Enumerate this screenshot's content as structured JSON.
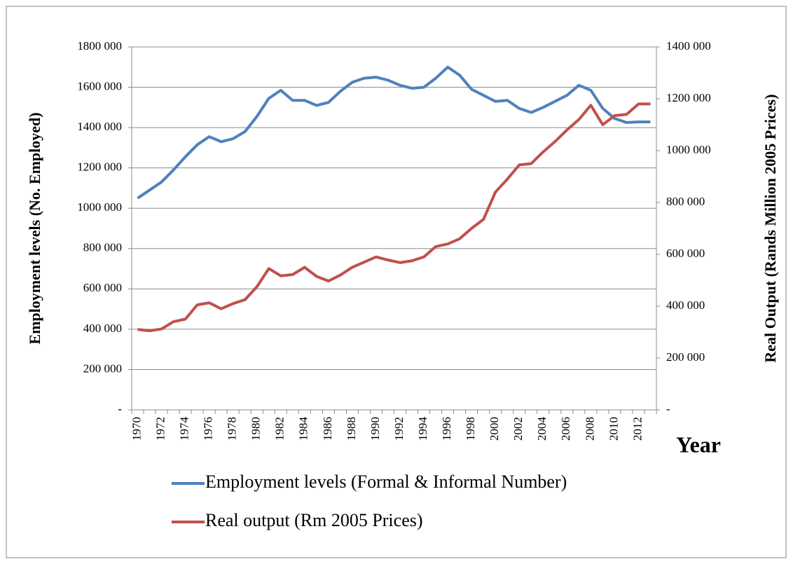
{
  "chart_data": {
    "type": "line",
    "y_label": "Employment levels (No. Employed)",
    "y2_label": "Real Output (Rands Million 2005 Prices)",
    "x_label": "Year",
    "categories": [
      "1970",
      null,
      "1972",
      null,
      "1974",
      null,
      "1976",
      null,
      "1978",
      null,
      "1980",
      null,
      "1982",
      null,
      "1984",
      null,
      "1986",
      null,
      "1988",
      null,
      "1990",
      null,
      "1992",
      null,
      "1994",
      null,
      "1996",
      null,
      "1998",
      null,
      "2000",
      null,
      "2002",
      null,
      "2004",
      null,
      "2006",
      null,
      "2008",
      null,
      "2010",
      null,
      "2012",
      null
    ],
    "series": [
      {
        "name": "Employment levels (Formal & Informal Number)",
        "color": "#4f81bd",
        "values": [
          1050000,
          1090000,
          1130000,
          1190000,
          1255000,
          1315000,
          1355000,
          1330000,
          1345000,
          1380000,
          1455000,
          1545000,
          1585000,
          1535000,
          1535000,
          1510000,
          1525000,
          1580000,
          1625000,
          1645000,
          1650000,
          1635000,
          1610000,
          1595000,
          1600000,
          1645000,
          1700000,
          1660000,
          1590000,
          1560000,
          1530000,
          1535000,
          1495000,
          1475000,
          1500000,
          1530000,
          1560000,
          1610000,
          1585000,
          1495000,
          1445000,
          1425000,
          1428000,
          1428000
        ]
      },
      {
        "name": "Real output (Rm 2005 Prices)",
        "color": "#c0504d",
        "axis": "y2",
        "values": [
          310000,
          305000,
          312000,
          340000,
          350000,
          405000,
          413000,
          390000,
          410000,
          425000,
          475000,
          545000,
          517000,
          522000,
          550000,
          515000,
          497000,
          520000,
          550000,
          570000,
          590000,
          578000,
          568000,
          575000,
          590000,
          630000,
          640000,
          660000,
          700000,
          735000,
          840000,
          890000,
          945000,
          950000,
          995000,
          1035000,
          1080000,
          1120000,
          1175000,
          1100000,
          1135000,
          1140000,
          1180000,
          1180000
        ]
      }
    ],
    "ylim": [
      0,
      1800000
    ],
    "yticks": [
      {
        "value": 0,
        "label": "-"
      },
      {
        "value": 200000,
        "label": "200 000"
      },
      {
        "value": 400000,
        "label": "400 000"
      },
      {
        "value": 600000,
        "label": "600 000"
      },
      {
        "value": 800000,
        "label": "800 000"
      },
      {
        "value": 1000000,
        "label": "1000 000"
      },
      {
        "value": 1200000,
        "label": "1200 000"
      },
      {
        "value": 1400000,
        "label": "1400 000"
      },
      {
        "value": 1600000,
        "label": "1600 000"
      },
      {
        "value": 1800000,
        "label": "1800 000"
      }
    ],
    "y2lim": [
      0,
      1400000
    ],
    "y2ticks": [
      {
        "value": 0,
        "label": "-"
      },
      {
        "value": 200000,
        "label": "200 000"
      },
      {
        "value": 400000,
        "label": "400 000"
      },
      {
        "value": 600000,
        "label": "600 000"
      },
      {
        "value": 800000,
        "label": "800 000"
      },
      {
        "value": 1000000,
        "label": "1000 000"
      },
      {
        "value": 1200000,
        "label": "1200 000"
      },
      {
        "value": 1400000,
        "label": "1400 000"
      }
    ],
    "grid": true
  }
}
